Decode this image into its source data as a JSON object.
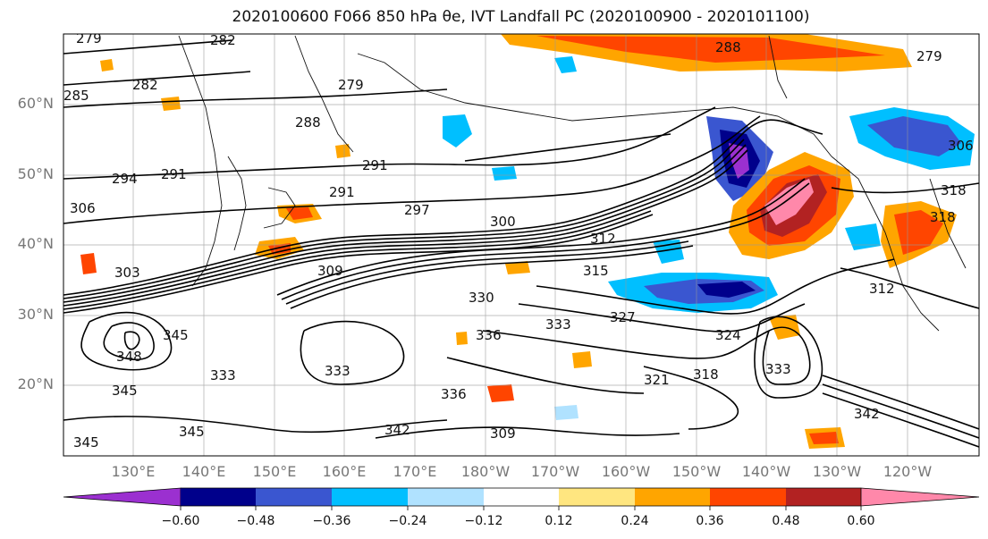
{
  "title": "2020100600 F066 850 hPa θe, IVT Landfall PC (2020100900 - 2020101100)",
  "lat_labels": [
    "60°N",
    "50°N",
    "40°N",
    "30°N",
    "20°N"
  ],
  "lon_labels": [
    "130°E",
    "140°E",
    "150°E",
    "160°E",
    "170°E",
    "180°W",
    "170°W",
    "160°W",
    "150°W",
    "140°W",
    "130°W",
    "120°W"
  ],
  "colorbar": {
    "ticks": [
      "−0.60",
      "−0.48",
      "−0.36",
      "−0.24",
      "−0.12",
      "0.12",
      "0.24",
      "0.36",
      "0.48",
      "0.60"
    ],
    "colors": [
      "#9b30d0",
      "#00008b",
      "#3a56d0",
      "#00bfff",
      "#b0e2ff",
      "#ffffff",
      "#ffe680",
      "#ffa500",
      "#ff4500",
      "#b22222",
      "#ff88aa"
    ]
  },
  "contour_labels": [
    "279",
    "282",
    "282",
    "285",
    "288",
    "279",
    "288",
    "279",
    "291",
    "291",
    "291",
    "294",
    "297",
    "300",
    "312",
    "306",
    "303",
    "309",
    "315",
    "318",
    "330",
    "333",
    "327",
    "324",
    "336",
    "336",
    "333",
    "345",
    "348",
    "345",
    "345",
    "345",
    "342",
    "342",
    "333",
    "321",
    "318",
    "333",
    "312",
    "318",
    "306",
    "309"
  ]
}
